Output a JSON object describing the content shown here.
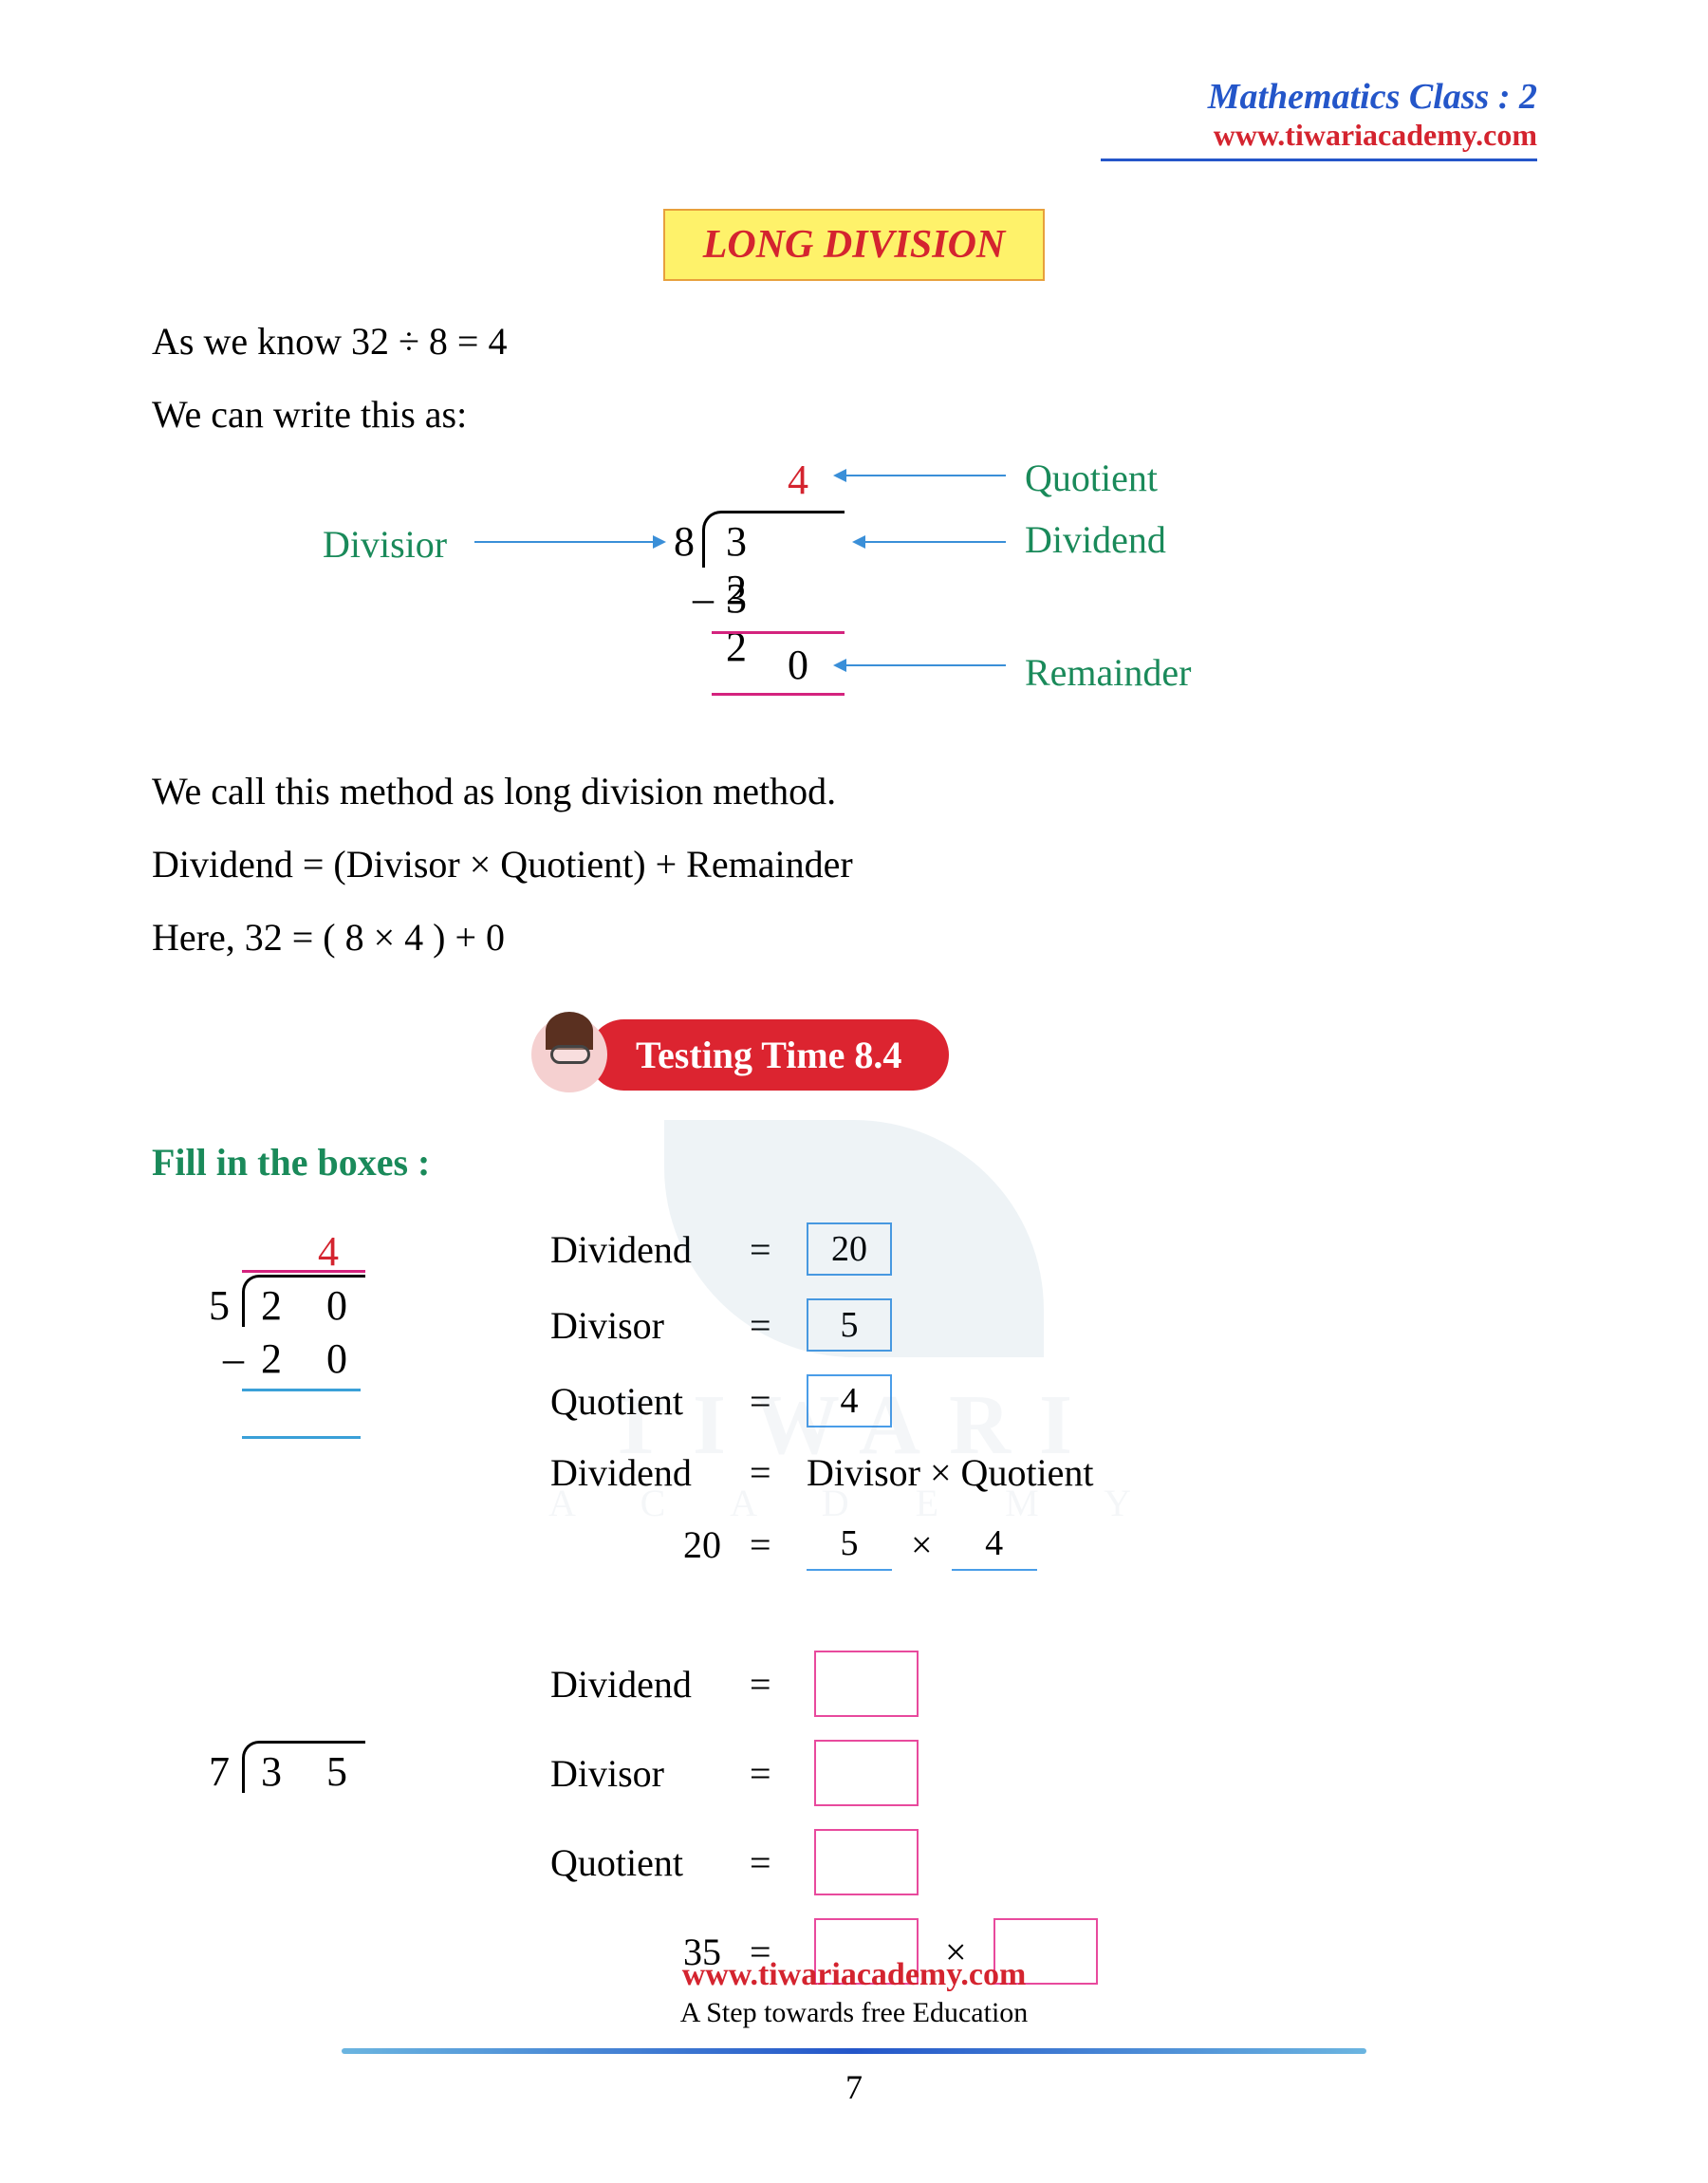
{
  "colors": {
    "blue": "#2456c9",
    "red": "#d4242f",
    "green": "#1a8a5a",
    "yellow_bg": "#fef26a",
    "orange_border": "#e8a03c",
    "magenta": "#d4237e",
    "cyan": "#3aa0d8",
    "box_blue": "#4a9de8",
    "box_pink": "#e84a9d",
    "badge_red": "#dc2430",
    "quot_line": "#d4237e",
    "arrow_blue": "#3a8fd8",
    "footer_gradient_a": "#6bb5e0",
    "footer_gradient_b": "#2456c9",
    "wm_leaf": "#2a6a8a",
    "wm_text": "#5a7a9a"
  },
  "header": {
    "title": "Mathematics Class : 2",
    "website": "www.tiwariacademy.com"
  },
  "main_title": "LONG DIVISION",
  "intro": {
    "line1": "As we know  32 ÷ 8  =  4",
    "line2": "We can write this as:"
  },
  "long_div": {
    "divisor_label": "Divisior",
    "quotient_label": "Quotient",
    "dividend_label": "Dividend",
    "remainder_label": "Remainder",
    "divisor": "8",
    "dividend": "3 2",
    "quotient": "4",
    "subtract": "3 2",
    "minus": "–",
    "remainder": "0"
  },
  "explain": {
    "line1": "We call this method as long division method.",
    "line2": "Dividend = (Divisor × Quotient) + Remainder",
    "line3": "Here, 32 = ( 8 × 4 ) + 0"
  },
  "badge": "Testing Time 8.4",
  "fill_heading": "Fill in the boxes :",
  "ex1": {
    "divisor": "5",
    "dividend": "2 0",
    "quotient": "4",
    "minus": "–",
    "subtract": "2 0",
    "r_dividend_label": "Dividend",
    "r_divisor_label": "Divisor",
    "r_quotient_label": "Quotient",
    "r_formula_label": "Dividend",
    "r_formula_rhs": "Divisor × Quotient",
    "eq": "=",
    "val_dividend": "20",
    "val_divisor": "5",
    "val_quotient": "4",
    "val_20": "20",
    "val_a": "5",
    "val_b": "4",
    "times": "×"
  },
  "ex2": {
    "divisor": "7",
    "dividend": "3 5",
    "r_dividend_label": "Dividend",
    "r_divisor_label": "Divisor",
    "r_quotient_label": "Quotient",
    "eq": "=",
    "val_35": "35",
    "times": "×"
  },
  "footer": {
    "website": "www.tiwariacademy.com",
    "tagline": "A Step towards free Education",
    "page": "7"
  },
  "watermark": {
    "t1": "TIWARI",
    "t2": "A C A D E M Y"
  }
}
